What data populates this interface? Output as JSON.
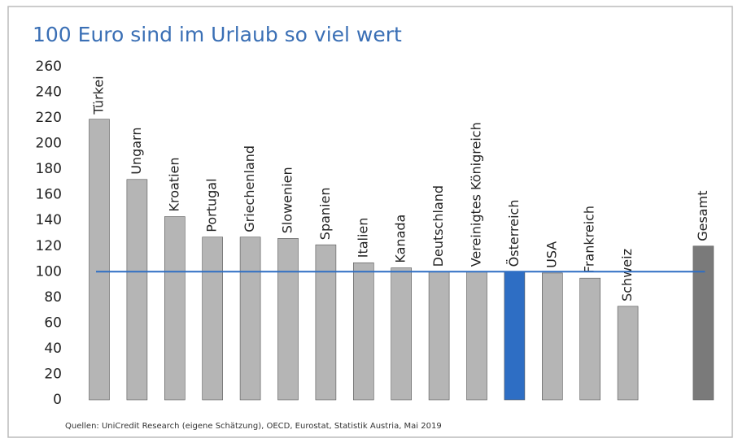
{
  "chart_data": {
    "type": "bar",
    "title": "100 Euro sind im Urlaub so viel wert",
    "categories": [
      "Türkei",
      "Ungarn",
      "Kroatien",
      "Portugal",
      "Griechenland",
      "Slowenien",
      "Spanien",
      "Italien",
      "Kanada",
      "Deutschland",
      "Vereinigtes Königreich",
      "Österreich",
      "USA",
      "Frankreich",
      "Schweiz",
      null,
      "Gesamt"
    ],
    "values": [
      219,
      172,
      143,
      127,
      127,
      126,
      121,
      107,
      103,
      100,
      100,
      100,
      99,
      95,
      73,
      null,
      120
    ],
    "colors": [
      "#b5b5b5",
      "#b5b5b5",
      "#b5b5b5",
      "#b5b5b5",
      "#b5b5b5",
      "#b5b5b5",
      "#b5b5b5",
      "#b5b5b5",
      "#b5b5b5",
      "#b5b5b5",
      "#b5b5b5",
      "#2e6ec4",
      "#b5b5b5",
      "#b5b5b5",
      "#b5b5b5",
      null,
      "#7a7a7a"
    ],
    "reference_line": 100,
    "reference_color": "#2e6ec4",
    "ylim": [
      0,
      260
    ],
    "yticks": [
      0,
      20,
      40,
      60,
      80,
      100,
      120,
      140,
      160,
      180,
      200,
      220,
      240,
      260
    ],
    "source": "Quellen: UniCredit Research (eigene Schätzung), OECD, Eurostat, Statistik Austria,  Mai 2019"
  }
}
